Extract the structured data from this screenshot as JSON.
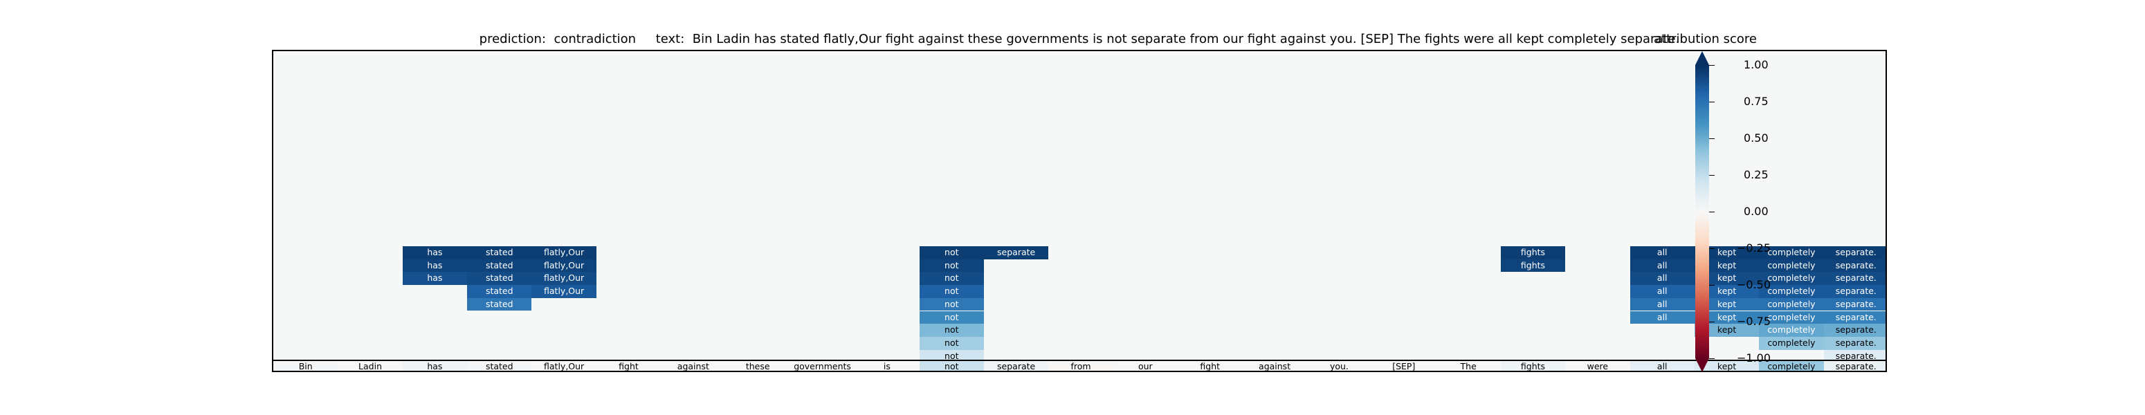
{
  "chart_data": {
    "type": "heatmap",
    "title": "prediction:  contradiction     text:  Bin Ladin has stated flatly,Our fight against these governments is not separate from our fight against you. [SEP] The fights were all kept completely separate.",
    "colorbar_label": "attribution score",
    "colorbar_ticks": [
      "1.00",
      "0.75",
      "0.50",
      "0.25",
      "0.00",
      "−0.25",
      "−0.50",
      "−0.75",
      "−1.00"
    ],
    "clim": [
      -1,
      1
    ],
    "tokens": [
      "Bin",
      "Ladin",
      "has",
      "stated",
      "flatly,Our",
      "fight",
      "against",
      "these",
      "governments",
      "is",
      "not",
      "separate",
      "from",
      "our",
      "fight",
      "against",
      "you.",
      "[SEP]",
      "The",
      "fights",
      "were",
      "all",
      "kept",
      "completely",
      "separate."
    ],
    "token_scores": [
      0.02,
      0.0,
      0.03,
      0.02,
      0.0,
      0.0,
      0.0,
      0.0,
      0.0,
      0.0,
      0.22,
      0.04,
      -0.01,
      0.0,
      0.0,
      0.0,
      0.0,
      0.0,
      0.0,
      0.05,
      0.0,
      0.1,
      0.15,
      0.38,
      0.07
    ],
    "rows": [
      [
        {
          "i": 2,
          "v": 0.95
        },
        {
          "i": 3,
          "v": 0.95
        },
        {
          "i": 4,
          "v": 0.95
        },
        {
          "i": 10,
          "v": 0.95
        },
        {
          "i": 11,
          "v": 0.95
        },
        {
          "i": 19,
          "v": 0.95
        },
        {
          "i": 21,
          "v": 0.95
        },
        {
          "i": 22,
          "v": 0.95
        },
        {
          "i": 23,
          "v": 0.95
        },
        {
          "i": 24,
          "v": 0.95
        }
      ],
      [
        {
          "i": 2,
          "v": 0.93
        },
        {
          "i": 3,
          "v": 0.93
        },
        {
          "i": 4,
          "v": 0.93
        },
        {
          "i": 10,
          "v": 0.93
        },
        {
          "i": 19,
          "v": 0.93
        },
        {
          "i": 21,
          "v": 0.93
        },
        {
          "i": 22,
          "v": 0.93
        },
        {
          "i": 23,
          "v": 0.93
        },
        {
          "i": 24,
          "v": 0.93
        }
      ],
      [
        {
          "i": 2,
          "v": 0.88
        },
        {
          "i": 3,
          "v": 0.9
        },
        {
          "i": 4,
          "v": 0.9
        },
        {
          "i": 10,
          "v": 0.9
        },
        {
          "i": 21,
          "v": 0.9
        },
        {
          "i": 22,
          "v": 0.9
        },
        {
          "i": 23,
          "v": 0.9
        },
        {
          "i": 24,
          "v": 0.9
        }
      ],
      [
        {
          "i": 3,
          "v": 0.82
        },
        {
          "i": 4,
          "v": 0.85
        },
        {
          "i": 10,
          "v": 0.82
        },
        {
          "i": 21,
          "v": 0.82
        },
        {
          "i": 22,
          "v": 0.82
        },
        {
          "i": 23,
          "v": 0.85
        },
        {
          "i": 24,
          "v": 0.85
        }
      ],
      [
        {
          "i": 3,
          "v": 0.72
        },
        {
          "i": 10,
          "v": 0.72
        },
        {
          "i": 21,
          "v": 0.75
        },
        {
          "i": 22,
          "v": 0.75
        },
        {
          "i": 23,
          "v": 0.75
        },
        {
          "i": 24,
          "v": 0.75
        }
      ],
      [
        {
          "i": 10,
          "v": 0.65
        },
        {
          "i": 21,
          "v": 0.68
        },
        {
          "i": 22,
          "v": 0.68
        },
        {
          "i": 23,
          "v": 0.68
        },
        {
          "i": 24,
          "v": 0.68
        }
      ],
      [
        {
          "i": 10,
          "v": 0.45
        },
        {
          "i": 22,
          "v": 0.48
        },
        {
          "i": 23,
          "v": 0.52
        },
        {
          "i": 24,
          "v": 0.5
        }
      ],
      [
        {
          "i": 10,
          "v": 0.35
        },
        {
          "i": 23,
          "v": 0.4
        },
        {
          "i": 24,
          "v": 0.38
        }
      ],
      [
        {
          "i": 10,
          "v": 0.2
        },
        {
          "i": 24,
          "v": 0.12
        }
      ]
    ]
  }
}
